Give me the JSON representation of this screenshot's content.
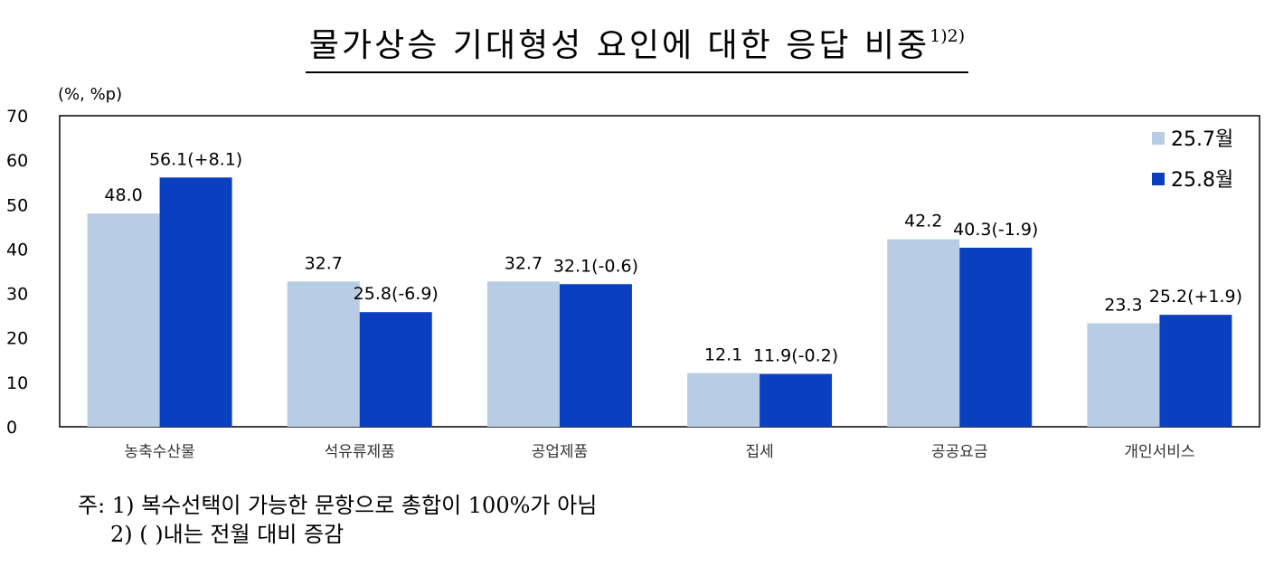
{
  "chart_data": {
    "type": "bar",
    "title": "물가상승 기대형성 요인에 대한 응답 비중",
    "title_superscript": "1)2)",
    "unit_label": "(%, %p)",
    "ylim": [
      0,
      70
    ],
    "yticks": [
      "0",
      "10",
      "20",
      "30",
      "40",
      "50",
      "60",
      "70"
    ],
    "grid": false,
    "legend_position": "top-right",
    "categories": [
      "농축수산물",
      "석유류제품",
      "공업제품",
      "집세",
      "공공요금",
      "개인서비스"
    ],
    "series": [
      {
        "name": "25.7월",
        "color": "#b8cce4",
        "values": [
          48.0,
          32.7,
          32.7,
          12.1,
          42.2,
          23.3
        ],
        "labels": [
          "48.0",
          "32.7",
          "32.7",
          "12.1",
          "42.2",
          "23.3"
        ]
      },
      {
        "name": "25.8월",
        "color": "#0b3fbf",
        "values": [
          56.1,
          25.8,
          32.1,
          11.9,
          40.3,
          25.2
        ],
        "labels": [
          "56.1(+8.1)",
          "25.8(-6.9)",
          "32.1(-0.6)",
          "11.9(-0.2)",
          "40.3(-1.9)",
          "25.2(+1.9)"
        ]
      }
    ]
  },
  "notes": {
    "prefix": "주:",
    "line1": "1) 복수선택이 가능한 문항으로 총합이 100%가 아님",
    "line2": "2) ( )내는 전월 대비 증감"
  }
}
